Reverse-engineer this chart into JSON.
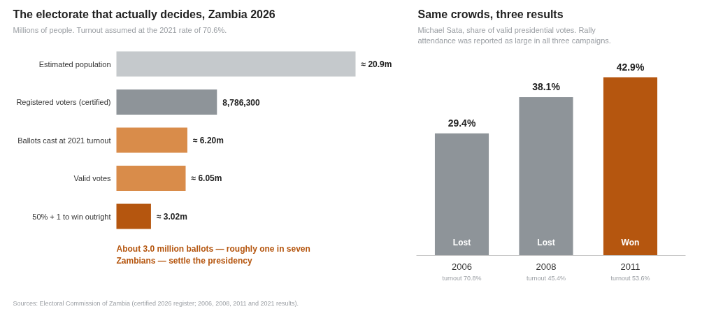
{
  "chart_data": [
    {
      "type": "bar",
      "orientation": "horizontal",
      "title": "The electorate that actually decides, Zambia 2026",
      "subtitle": "Millions of people. Turnout assumed at the 2021 rate of 70.6%.",
      "categories": [
        "Estimated population",
        "Registered voters (certified)",
        "Ballots cast at 2021 turnout",
        "Valid votes",
        "50% + 1 to win outright"
      ],
      "values": [
        20900000,
        8786300,
        6200000,
        6050000,
        3020000
      ],
      "colors": [
        "#c5c9cc",
        "#8e9499",
        "#d98c4a",
        "#d98c4a",
        "#b5560f"
      ],
      "value_labels": [
        "≈ 20.9m",
        "8,786,300",
        "≈ 6.20m",
        "≈ 6.05m",
        "≈ 3.02m"
      ],
      "annotations": [
        "About 3.0 million ballots — roughly one in seven\nZambians — settle the presidency",
        "Sources: Electoral Commission of Zambia (certified 2026 register; 2006, 2008, 2011 and 2021 results)."
      ],
      "grid": false
    },
    {
      "type": "bar",
      "title": "Same crowds, three results",
      "subtitle": "Michael Sata, share of valid presidential votes. Rally\nattendance was reported as large in all three campaigns.",
      "categories": [
        "2006",
        "2008",
        "2011"
      ],
      "values": [
        29.4,
        38.1,
        42.9
      ],
      "colors": [
        "#8e9499",
        "#8e9499",
        "#b5560f"
      ],
      "value_labels": [
        "29.4%",
        "38.1%",
        "42.9%"
      ],
      "annotations": [
        {
          "text": "Lost",
          "x": "2006",
          "y": 0
        },
        {
          "text": "Lost",
          "x": "2008",
          "y": 0
        },
        {
          "text": "Won",
          "x": "2011",
          "y": 0
        },
        "turnout 70.8%",
        "turnout 45.4%",
        "turnout 53.6%"
      ],
      "grid": false
    }
  ]
}
